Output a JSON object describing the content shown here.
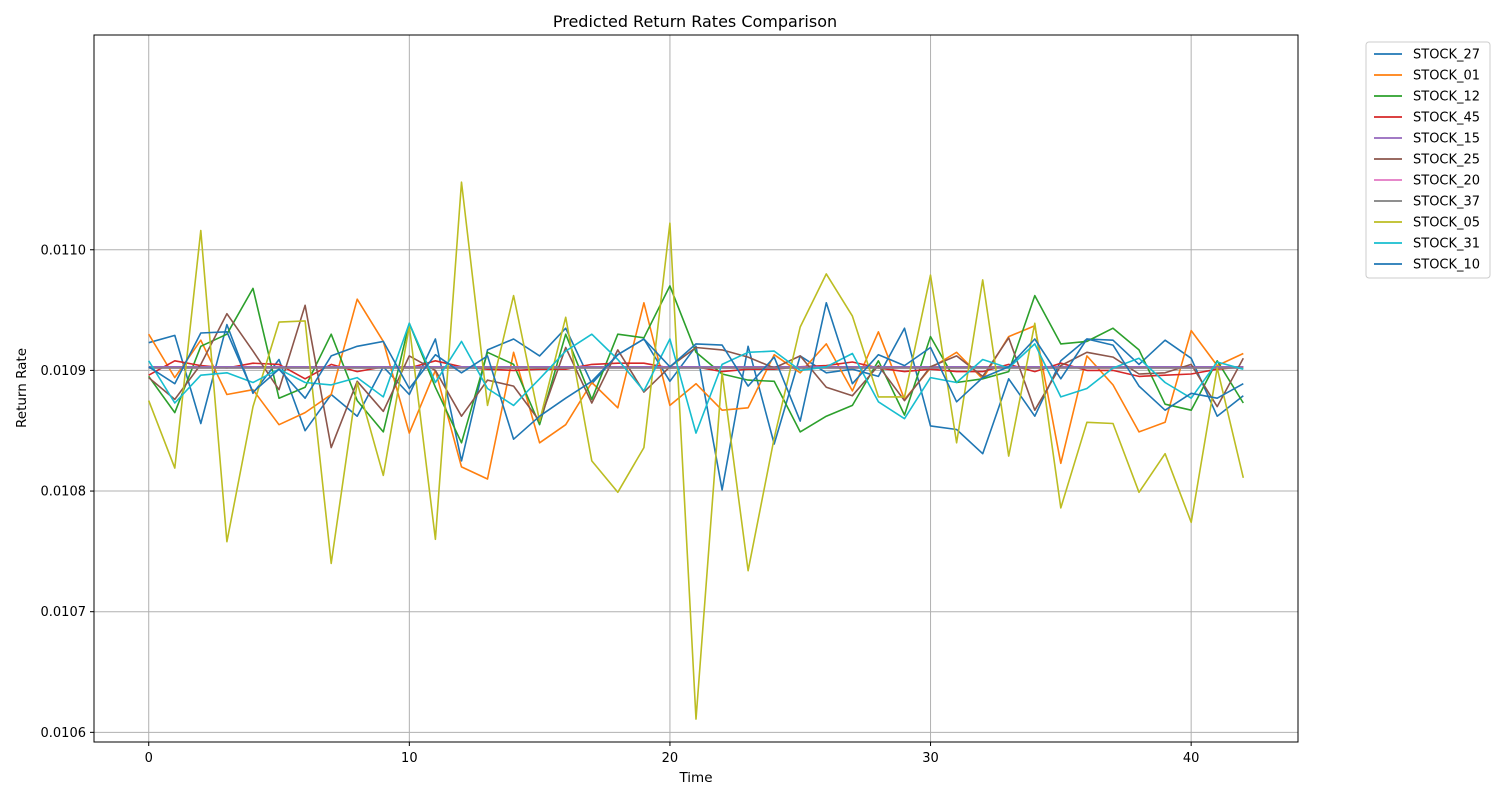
{
  "chart_data": {
    "type": "line",
    "title": "Predicted Return Rates Comparison",
    "xlabel": "Time",
    "ylabel": "Return Rate",
    "xlim": [
      -2.1,
      44.1
    ],
    "ylim": [
      0.010592,
      0.011178
    ],
    "xticks": [
      0,
      10,
      20,
      30,
      40
    ],
    "xtick_labels": [
      "0",
      "10",
      "20",
      "30",
      "40"
    ],
    "yticks": [
      0.0106,
      0.0107,
      0.0108,
      0.0109,
      0.011
    ],
    "ytick_labels": [
      "0.0106",
      "0.0107",
      "0.0108",
      "0.0109",
      "0.0110"
    ],
    "grid": true,
    "legend_position": "outside-top-right",
    "x": [
      0,
      1,
      2,
      3,
      4,
      5,
      6,
      7,
      8,
      9,
      10,
      11,
      12,
      13,
      14,
      15,
      16,
      17,
      18,
      19,
      20,
      21,
      22,
      23,
      24,
      25,
      26,
      27,
      28,
      29,
      30,
      31,
      32,
      33,
      34,
      35,
      36,
      37,
      38,
      39,
      40,
      41,
      42
    ],
    "series": [
      {
        "name": "STOCK_27",
        "color": "#1f77b4",
        "values": [
          0.010923,
          0.010929,
          0.010856,
          0.010938,
          0.010881,
          0.010909,
          0.01085,
          0.01088,
          0.010862,
          0.010903,
          0.01088,
          0.010926,
          0.010825,
          0.010917,
          0.010926,
          0.010912,
          0.010935,
          0.010889,
          0.010913,
          0.010926,
          0.010891,
          0.01092,
          0.010801,
          0.01092,
          0.010839,
          0.010912,
          0.010898,
          0.010901,
          0.010895,
          0.010935,
          0.010854,
          0.010851,
          0.010831,
          0.010893,
          0.010862,
          0.010908,
          0.010926,
          0.010925,
          0.010905,
          0.010925,
          0.01091,
          0.010862,
          0.010879
        ]
      },
      {
        "name": "STOCK_01",
        "color": "#ff7f0e",
        "values": [
          0.01093,
          0.010894,
          0.010925,
          0.01088,
          0.010884,
          0.010855,
          0.010865,
          0.01088,
          0.010959,
          0.010924,
          0.010848,
          0.0109,
          0.01082,
          0.01081,
          0.010915,
          0.01084,
          0.010855,
          0.01089,
          0.010869,
          0.010956,
          0.010871,
          0.010889,
          0.010867,
          0.010869,
          0.010913,
          0.010898,
          0.010922,
          0.010883,
          0.010932,
          0.010876,
          0.010902,
          0.010915,
          0.010893,
          0.010928,
          0.010937,
          0.010823,
          0.010912,
          0.010888,
          0.010849,
          0.010857,
          0.010933,
          0.010904,
          0.010914
        ]
      },
      {
        "name": "STOCK_12",
        "color": "#2ca02c",
        "values": [
          0.010895,
          0.010865,
          0.01092,
          0.01093,
          0.010968,
          0.010877,
          0.010886,
          0.01093,
          0.010875,
          0.010849,
          0.010939,
          0.010886,
          0.01084,
          0.010915,
          0.010905,
          0.010855,
          0.01093,
          0.010876,
          0.01093,
          0.010927,
          0.01097,
          0.010915,
          0.010897,
          0.010892,
          0.010891,
          0.010849,
          0.010862,
          0.010871,
          0.010908,
          0.010863,
          0.010928,
          0.01089,
          0.010893,
          0.010899,
          0.010962,
          0.010922,
          0.010924,
          0.010935,
          0.010917,
          0.010872,
          0.010867,
          0.010908,
          0.010873
        ]
      },
      {
        "name": "STOCK_45",
        "color": "#d62728",
        "values": [
          0.010896,
          0.010908,
          0.010904,
          0.010902,
          0.010906,
          0.010905,
          0.010893,
          0.010905,
          0.010899,
          0.010903,
          0.010902,
          0.010908,
          0.010903,
          0.010901,
          0.0109,
          0.010901,
          0.010901,
          0.010905,
          0.010906,
          0.010906,
          0.010902,
          0.010903,
          0.010899,
          0.010901,
          0.010901,
          0.010903,
          0.010904,
          0.010907,
          0.010902,
          0.010899,
          0.010901,
          0.010899,
          0.010899,
          0.010905,
          0.010899,
          0.010906,
          0.0109,
          0.0109,
          0.010895,
          0.010896,
          0.010897,
          0.010901,
          0.010903
        ]
      },
      {
        "name": "STOCK_15",
        "color": "#9467bd",
        "values": [
          0.010903,
          0.010903,
          0.010903,
          0.010903,
          0.010903,
          0.010903,
          0.010903,
          0.010903,
          0.010903,
          0.010903,
          0.010903,
          0.010903,
          0.010903,
          0.010903,
          0.010903,
          0.010903,
          0.010903,
          0.010903,
          0.010903,
          0.010903,
          0.010903,
          0.010903,
          0.010903,
          0.010903,
          0.010903,
          0.010903,
          0.010903,
          0.010903,
          0.010903,
          0.010903,
          0.010903,
          0.010903,
          0.010903,
          0.010903,
          0.010903,
          0.010903,
          0.010903,
          0.010903,
          0.010903,
          0.010903,
          0.010903,
          0.010903,
          0.010903
        ]
      },
      {
        "name": "STOCK_25",
        "color": "#8c564b",
        "values": [
          0.010894,
          0.010876,
          0.010905,
          0.010947,
          0.010916,
          0.010884,
          0.010954,
          0.010836,
          0.010891,
          0.010866,
          0.010912,
          0.0109,
          0.010862,
          0.010892,
          0.010887,
          0.010858,
          0.010919,
          0.010873,
          0.010917,
          0.010882,
          0.010903,
          0.010919,
          0.010917,
          0.010911,
          0.010902,
          0.010912,
          0.010886,
          0.010879,
          0.010904,
          0.010875,
          0.010903,
          0.010912,
          0.010895,
          0.010927,
          0.010867,
          0.010904,
          0.010915,
          0.010911,
          0.010897,
          0.010898,
          0.010905,
          0.01087,
          0.01091
        ]
      },
      {
        "name": "STOCK_20",
        "color": "#e377c2",
        "values": [
          0.010902,
          0.010902,
          0.010902,
          0.010902,
          0.010902,
          0.010902,
          0.010902,
          0.010902,
          0.010902,
          0.010902,
          0.010902,
          0.010902,
          0.010902,
          0.010902,
          0.010902,
          0.010902,
          0.010902,
          0.010902,
          0.010902,
          0.010902,
          0.010902,
          0.010902,
          0.010902,
          0.010902,
          0.010902,
          0.010902,
          0.010902,
          0.010902,
          0.010902,
          0.010902,
          0.010902,
          0.010902,
          0.010902,
          0.010902,
          0.010902,
          0.010902,
          0.010902,
          0.010902,
          0.010902,
          0.010902,
          0.010902,
          0.010902,
          0.010902
        ]
      },
      {
        "name": "STOCK_37",
        "color": "#7f7f7f",
        "values": [
          0.010902,
          0.010902,
          0.010902,
          0.010902,
          0.010902,
          0.010902,
          0.010902,
          0.010902,
          0.010902,
          0.010902,
          0.010902,
          0.010902,
          0.010902,
          0.010902,
          0.010902,
          0.010902,
          0.010902,
          0.010902,
          0.010902,
          0.010902,
          0.010902,
          0.010902,
          0.010902,
          0.010902,
          0.010902,
          0.010902,
          0.010902,
          0.010902,
          0.010902,
          0.010902,
          0.010902,
          0.010902,
          0.010902,
          0.010902,
          0.010902,
          0.010902,
          0.010902,
          0.010902,
          0.010902,
          0.010902,
          0.010902,
          0.010902,
          0.010902
        ]
      },
      {
        "name": "STOCK_05",
        "color": "#bcbd22",
        "values": [
          0.010875,
          0.010819,
          0.011016,
          0.010758,
          0.01087,
          0.01094,
          0.010941,
          0.01074,
          0.01089,
          0.010813,
          0.010937,
          0.01076,
          0.011056,
          0.010871,
          0.010962,
          0.010858,
          0.010944,
          0.010825,
          0.010799,
          0.010836,
          0.011022,
          0.010611,
          0.010898,
          0.010734,
          0.010844,
          0.010936,
          0.01098,
          0.010945,
          0.010878,
          0.010878,
          0.010979,
          0.01084,
          0.010975,
          0.010829,
          0.010939,
          0.010786,
          0.010857,
          0.010856,
          0.010799,
          0.010831,
          0.010774,
          0.010902,
          0.010811
        ]
      },
      {
        "name": "STOCK_31",
        "color": "#17becf",
        "values": [
          0.010908,
          0.010873,
          0.010896,
          0.010898,
          0.01089,
          0.010901,
          0.01089,
          0.010888,
          0.010894,
          0.010878,
          0.010939,
          0.01089,
          0.010924,
          0.010885,
          0.010871,
          0.010893,
          0.010916,
          0.01093,
          0.010909,
          0.010883,
          0.010926,
          0.010848,
          0.010905,
          0.010915,
          0.010916,
          0.0109,
          0.010903,
          0.010914,
          0.010874,
          0.01086,
          0.010894,
          0.01089,
          0.010909,
          0.010902,
          0.010922,
          0.010878,
          0.010885,
          0.010902,
          0.01091,
          0.01089,
          0.010877,
          0.010907,
          0.010901
        ]
      },
      {
        "name": "STOCK_10",
        "color": "#1f77b4",
        "values": [
          0.010903,
          0.010889,
          0.010931,
          0.010932,
          0.010882,
          0.010901,
          0.010877,
          0.010912,
          0.01092,
          0.010924,
          0.010885,
          0.010913,
          0.010898,
          0.010912,
          0.010843,
          0.010862,
          0.010877,
          0.010891,
          0.010913,
          0.010926,
          0.010903,
          0.010922,
          0.010921,
          0.010887,
          0.010911,
          0.010858,
          0.010956,
          0.010889,
          0.010913,
          0.010904,
          0.010919,
          0.010874,
          0.010894,
          0.010903,
          0.010926,
          0.010893,
          0.010926,
          0.010921,
          0.010887,
          0.010867,
          0.010881,
          0.010877,
          0.010889
        ]
      }
    ]
  }
}
